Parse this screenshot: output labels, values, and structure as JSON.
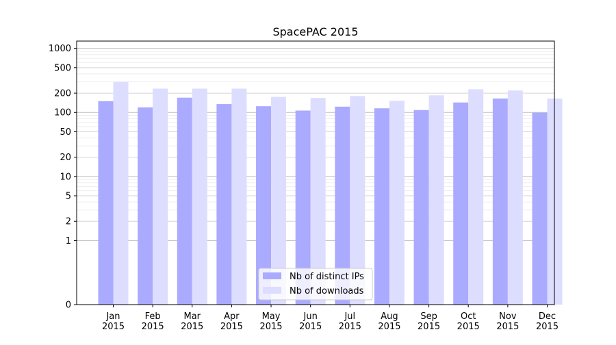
{
  "chart_data": {
    "type": "bar",
    "title": "SpacePAC 2015",
    "xlabel": "",
    "ylabel": "",
    "yscale": "symlog",
    "ylim": [
      0,
      1300
    ],
    "yticks": [
      0,
      1,
      2,
      5,
      10,
      20,
      50,
      100,
      200,
      500,
      1000
    ],
    "grid": "y",
    "legend_position": "bottom-center",
    "categories": [
      {
        "month": "Jan",
        "year": "2015"
      },
      {
        "month": "Feb",
        "year": "2015"
      },
      {
        "month": "Mar",
        "year": "2015"
      },
      {
        "month": "Apr",
        "year": "2015"
      },
      {
        "month": "May",
        "year": "2015"
      },
      {
        "month": "Jun",
        "year": "2015"
      },
      {
        "month": "Jul",
        "year": "2015"
      },
      {
        "month": "Aug",
        "year": "2015"
      },
      {
        "month": "Sep",
        "year": "2015"
      },
      {
        "month": "Oct",
        "year": "2015"
      },
      {
        "month": "Nov",
        "year": "2015"
      },
      {
        "month": "Dec",
        "year": "2015"
      }
    ],
    "series": [
      {
        "name": "Nb of distinct IPs",
        "color": "#aaaaff",
        "values": [
          150,
          120,
          170,
          135,
          125,
          107,
          123,
          116,
          109,
          143,
          165,
          99
        ]
      },
      {
        "name": "Nb of downloads",
        "color": "#ddddff",
        "values": [
          300,
          235,
          235,
          235,
          175,
          168,
          180,
          152,
          185,
          230,
          220,
          165
        ]
      }
    ]
  }
}
